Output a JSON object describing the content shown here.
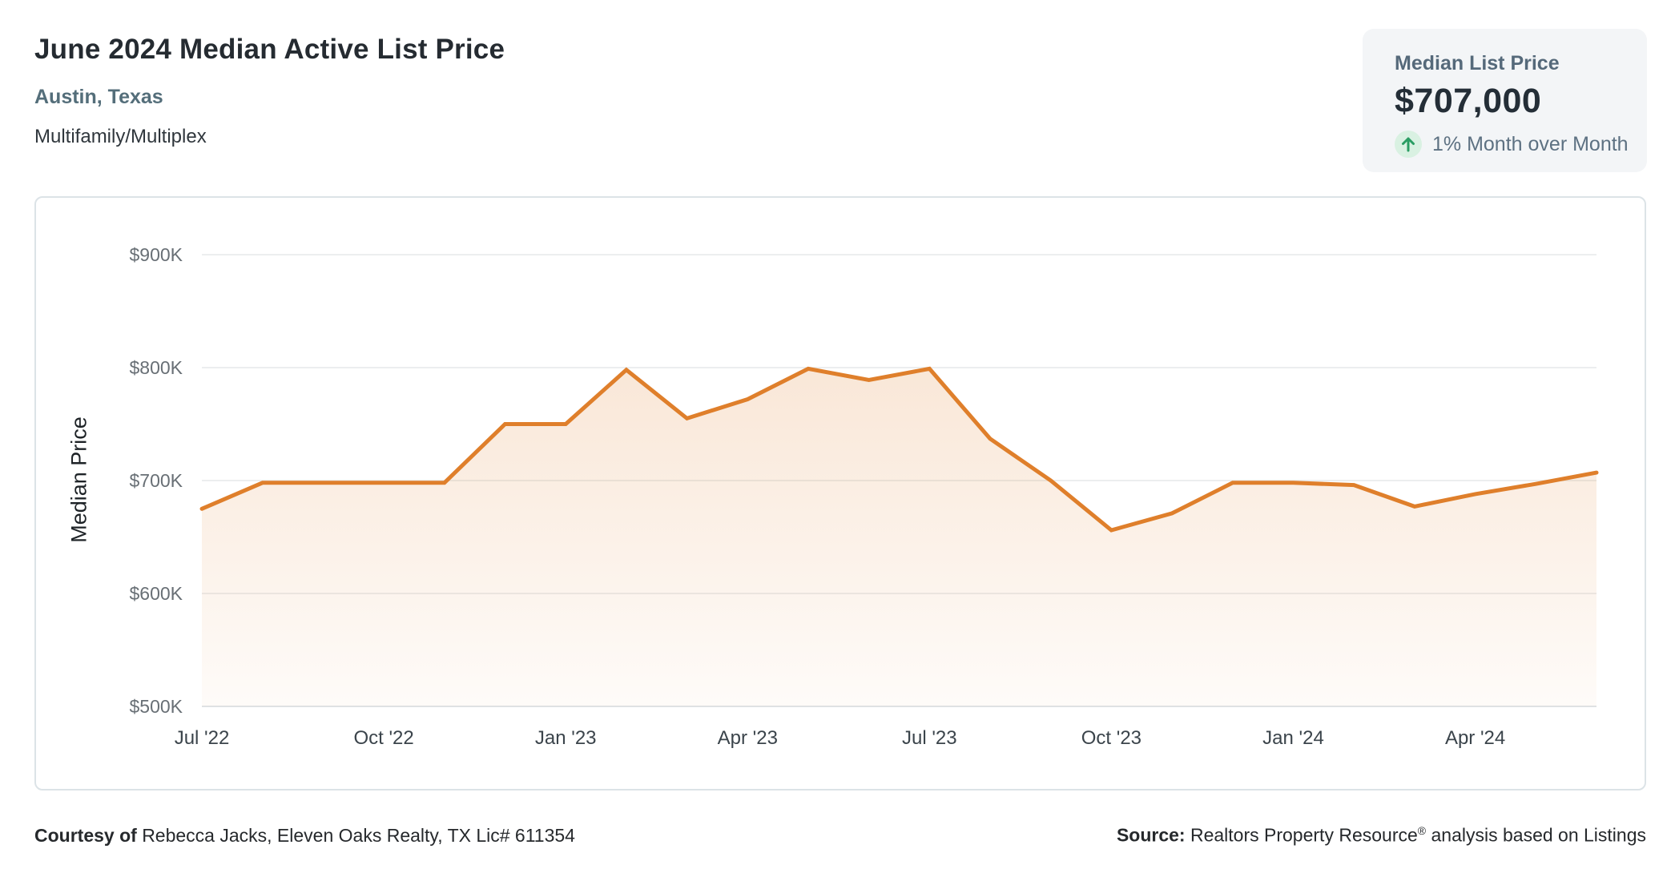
{
  "header": {
    "title": "June 2024 Median Active List Price",
    "location": "Austin, Texas",
    "property_type": "Multifamily/Multiplex"
  },
  "stat_card": {
    "label": "Median List Price",
    "value": "$707,000",
    "change_text": "1% Month over Month",
    "trend": "up",
    "trend_color": "#2a9d63",
    "trend_bg": "#d9f1e2"
  },
  "chart_data": {
    "type": "area",
    "series_name": "Median Active List Price",
    "x": [
      "Jul '22",
      "Aug '22",
      "Sep '22",
      "Oct '22",
      "Nov '22",
      "Dec '22",
      "Jan '23",
      "Feb '23",
      "Mar '23",
      "Apr '23",
      "May '23",
      "Jun '23",
      "Jul '23",
      "Aug '23",
      "Sep '23",
      "Oct '23",
      "Nov '23",
      "Dec '23",
      "Jan '24",
      "Feb '24",
      "Mar '24",
      "Apr '24",
      "May '24",
      "Jun '24"
    ],
    "values": [
      675,
      698,
      698,
      698,
      698,
      750,
      750,
      798,
      755,
      772,
      799,
      789,
      799,
      737,
      700,
      656,
      671,
      698,
      698,
      696,
      677,
      688,
      697,
      707
    ],
    "unit": "USD thousands",
    "ylabel": "Median Price",
    "ylim": [
      500,
      900
    ],
    "y_ticks": [
      {
        "label": "$500K",
        "value": 500
      },
      {
        "label": "$600K",
        "value": 600
      },
      {
        "label": "$700K",
        "value": 700
      },
      {
        "label": "$800K",
        "value": 800
      },
      {
        "label": "$900K",
        "value": 900
      }
    ],
    "x_tick_step": 3,
    "line_color": "#df7f2b",
    "grid": true,
    "legend": false
  },
  "footer": {
    "courtesy_label": "Courtesy of",
    "courtesy_text": "Rebecca Jacks, Eleven Oaks Realty, TX Lic# 611354",
    "source_label": "Source:",
    "source_name": "Realtors Property Resource",
    "source_reg": "®",
    "source_suffix": "analysis based on Listings"
  }
}
